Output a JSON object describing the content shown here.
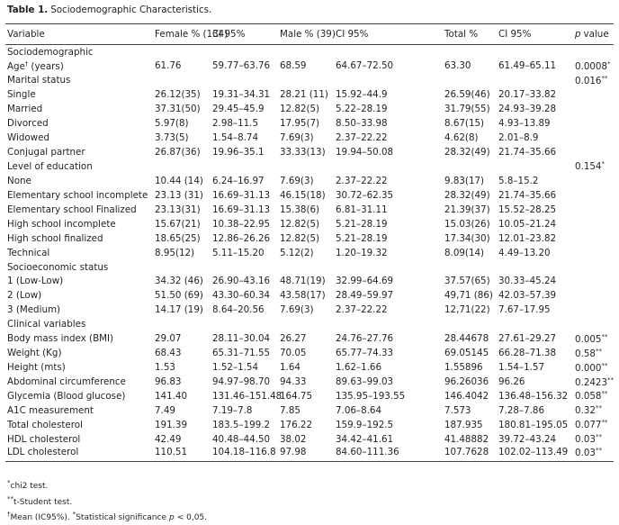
{
  "title": {
    "label": "Table 1.",
    "text": "Sociodemographic Characteristics."
  },
  "table": {
    "columns": [
      "Variable",
      "Female % (134)",
      "CI 95%",
      "Male % (39)",
      "CI 95%",
      "Total %",
      "CI 95%",
      {
        "italic": "p",
        "rest": "value"
      }
    ],
    "rows": [
      {
        "section": "Sociodemographic"
      },
      {
        "label": {
          "text": "Age",
          "sup": "†",
          "rest": "(years)"
        },
        "cells": [
          "61.76",
          "59.77–63.76",
          "68.59",
          "64.67–72.50",
          "63.30",
          "61.49–65.11"
        ],
        "p": {
          "value": "0.0008",
          "sup": "*"
        }
      },
      {
        "label": "Marital status",
        "p": {
          "value": "0.016",
          "sup": "**"
        }
      },
      {
        "label": "Single",
        "cells": [
          "26.12(35)",
          "19.31–34.31",
          "28.21 (11)",
          "15.92–44.9",
          "26.59(46)",
          "20.17–33.82"
        ]
      },
      {
        "label": "Married",
        "cells": [
          "37.31(50)",
          "29.45–45.9",
          "12.82(5)",
          "5.22–28.19",
          "31.79(55)",
          "24.93–39.28"
        ]
      },
      {
        "label": "Divorced",
        "cells": [
          "5.97(8)",
          "2.98–11.5",
          "17.95(7)",
          "8.50–33.98",
          "8.67(15)",
          "4.93–13.89"
        ]
      },
      {
        "label": "Widowed",
        "cells": [
          "3.73(5)",
          "1.54–8.74",
          "7.69(3)",
          "2.37–22.22",
          "4.62(8)",
          "2.01–8.9"
        ]
      },
      {
        "label": "Conjugal partner",
        "cells": [
          "26.87(36)",
          "19.96–35.1",
          "33.33(13)",
          "19.94–50.08",
          "28.32(49)",
          "21.74–35.66"
        ]
      },
      {
        "label": "Level of education",
        "p": {
          "value": "0.154",
          "sup": "*"
        }
      },
      {
        "label": "None",
        "cells": [
          "10.44 (14)",
          "6.24–16.97",
          "7.69(3)",
          "2.37–22.22",
          "9.83(17)",
          "5.8–15.2"
        ]
      },
      {
        "label": "Elementary school incomplete",
        "cells": [
          "23.13 (31)",
          "16.69–31.13",
          "46.15(18)",
          "30.72–62.35",
          "28.32(49)",
          "21.74–35.66"
        ]
      },
      {
        "label": "Elementary school Finalized",
        "cells": [
          "23.13(31)",
          "16.69–31.13",
          "15.38(6)",
          "6.81–31.11",
          "21.39(37)",
          "15.52–28.25"
        ]
      },
      {
        "label": "High school incomplete",
        "cells": [
          "15.67(21)",
          "10.38–22.95",
          "12.82(5)",
          "5.21–28.19",
          "15.03(26)",
          "10.05–21.24"
        ]
      },
      {
        "label": "High school finalized",
        "cells": [
          "18.65(25)",
          "12.86–26.26",
          "12.82(5)",
          "5.21–28.19",
          "17.34(30)",
          "12.01–23.82"
        ]
      },
      {
        "label": "Technical",
        "cells": [
          "8.95(12)",
          "5.11–15.20",
          "5.12(2)",
          "1.20–19.32",
          "8.09(14)",
          "4.49–13.20"
        ]
      },
      {
        "section": "Socioeconomic status"
      },
      {
        "label": "1 (Low-Low)",
        "cells": [
          "34.32 (46)",
          "26.90–43.16",
          "48.71(19)",
          "32.99–64.69",
          "37.57(65)",
          "30.33–45.24"
        ]
      },
      {
        "label": "2 (Low)",
        "cells": [
          "51.50 (69)",
          "43.30–60.34",
          "43.58(17)",
          "28.49–59.97",
          "49,71 (86)",
          "42.03–57.39"
        ]
      },
      {
        "label": "3 (Medium)",
        "cells": [
          "14.17 (19)",
          "8.64–20.56",
          "7.69(3)",
          "2.37–22.22",
          "12,71(22)",
          "7.67–17.95"
        ]
      },
      {
        "section": "Clinical variables"
      },
      {
        "label": "Body mass index (BMI)",
        "cells": [
          "29.07",
          "28.11–30.04",
          "26.27",
          "24.76–27.76",
          "28.44678",
          "27.61–29.27"
        ],
        "p": {
          "value": "0.005",
          "sup": "**"
        }
      },
      {
        "label": "Weight (Kg)",
        "cells": [
          "68.43",
          "65.31–71.55",
          "70.05",
          "65.77–74.33",
          "69.05145",
          "66.28–71.38"
        ],
        "p": {
          "value": "0.58",
          "sup": "**"
        }
      },
      {
        "label": "Height (mts)",
        "cells": [
          "1.53",
          "1.52–1.54",
          "1.64",
          "1.62–1.66",
          "1.55896",
          "1.54–1.57"
        ],
        "p": {
          "value": "0.000",
          "sup": "**"
        }
      },
      {
        "label": "Abdominal circumference",
        "cells": [
          "96.83",
          "94.97–98.70",
          "94.33",
          "89.63–99.03",
          "96.26036",
          "96.26"
        ],
        "p": {
          "value": "0.2423",
          "sup": "**"
        }
      },
      {
        "label": "Glycemia (Blood glucose)",
        "cells": [
          "141.40",
          "131.46–151.48",
          "164.75",
          "135.95–193.55",
          "146.4042",
          "136.48–156.32"
        ],
        "p": {
          "value": "0.058",
          "sup": "**"
        }
      },
      {
        "label": "A1C measurement",
        "cells": [
          "7.49",
          "7.19–7.8",
          "7.85",
          "7.06–8.64",
          "7.573",
          "7.28–7.86"
        ],
        "p": {
          "value": "0.32",
          "sup": "**"
        }
      },
      {
        "label": "Total cholesterol",
        "cells": [
          "191.39",
          "183.5–199.2",
          "176.22",
          "159.9–192.5",
          "187.935",
          "180.81–195.05"
        ],
        "p": {
          "value": "0.077",
          "sup": "**"
        }
      },
      {
        "label": "HDL cholesterol",
        "cells": [
          "42.49",
          "40.48–44.50",
          "38.02",
          "34.42–41.61",
          "41.48882",
          "39.72–43.24"
        ],
        "p": {
          "value": "0.03",
          "sup": "**"
        }
      },
      {
        "label": "LDL cholesterol",
        "cells": [
          "110.51",
          "104.18–116.8",
          "97.98",
          "84.60–111.36",
          "107.7628",
          "102.02–113.49"
        ],
        "p": {
          "value": "0.03",
          "sup": "**"
        }
      }
    ]
  },
  "footnotes": [
    [
      {
        "sup": "*",
        "text": "chi2 test."
      }
    ],
    [
      {
        "sup": "**",
        "text": "t-Student test."
      }
    ],
    [
      {
        "sup": "†",
        "text": "Mean (IC95%)."
      },
      {
        "sup": "*",
        "text": "Statistical significance",
        "italic": "p",
        "rest": "< 0,05."
      }
    ]
  ]
}
